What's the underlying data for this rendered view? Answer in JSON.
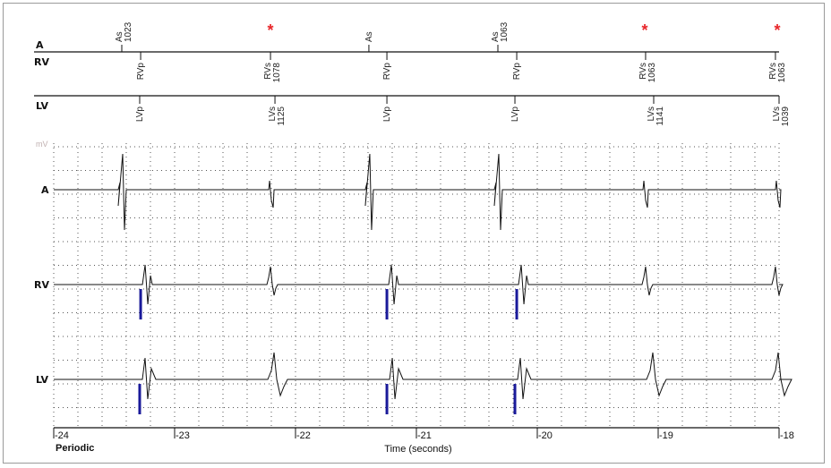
{
  "chart_data": {
    "type": "line",
    "title": "",
    "xlabel": "Time (seconds)",
    "mode_label": "Periodic",
    "unit_label": "mV",
    "xlim": [
      -24,
      -18
    ],
    "xticks": [
      "-24",
      "-23",
      "-22",
      "-21",
      "-20",
      "-19",
      "-18"
    ],
    "grid": true,
    "channels": [
      "A",
      "RV",
      "LV"
    ],
    "markers": {
      "A": [
        {
          "t": -23.437,
          "label": "As",
          "interval": "1023"
        },
        {
          "t": -22.207,
          "label": "*",
          "interval": ""
        },
        {
          "t": -21.393,
          "label": "As",
          "interval": ""
        },
        {
          "t": -20.326,
          "label": "As",
          "interval": "1063"
        },
        {
          "t": -19.111,
          "label": "*",
          "interval": ""
        },
        {
          "t": -18.015,
          "label": "*",
          "interval": ""
        }
      ],
      "RV": [
        {
          "t": -23.281,
          "label": "RVp",
          "interval": ""
        },
        {
          "t": -22.207,
          "label": "RVs",
          "interval": "1078"
        },
        {
          "t": -21.244,
          "label": "RVp",
          "interval": ""
        },
        {
          "t": -20.17,
          "label": "RVp",
          "interval": ""
        },
        {
          "t": -19.104,
          "label": "RVs",
          "interval": "1063"
        },
        {
          "t": -18.03,
          "label": "RVs",
          "interval": "1063"
        }
      ],
      "LV": [
        {
          "t": -23.289,
          "label": "LVp",
          "interval": ""
        },
        {
          "t": -22.17,
          "label": "LVs",
          "interval": "1125"
        },
        {
          "t": -21.244,
          "label": "LVp",
          "interval": ""
        },
        {
          "t": -20.185,
          "label": "LVp",
          "interval": ""
        },
        {
          "t": -19.037,
          "label": "LVs",
          "interval": "1141"
        },
        {
          "t": -18.0,
          "label": "LVs",
          "interval": "1039"
        }
      ]
    },
    "colors": {
      "trace": "#111111",
      "pace": "#1a1a9a",
      "star": "#e8262a",
      "grid": "#555555",
      "unit": "#c0b0b0"
    }
  }
}
